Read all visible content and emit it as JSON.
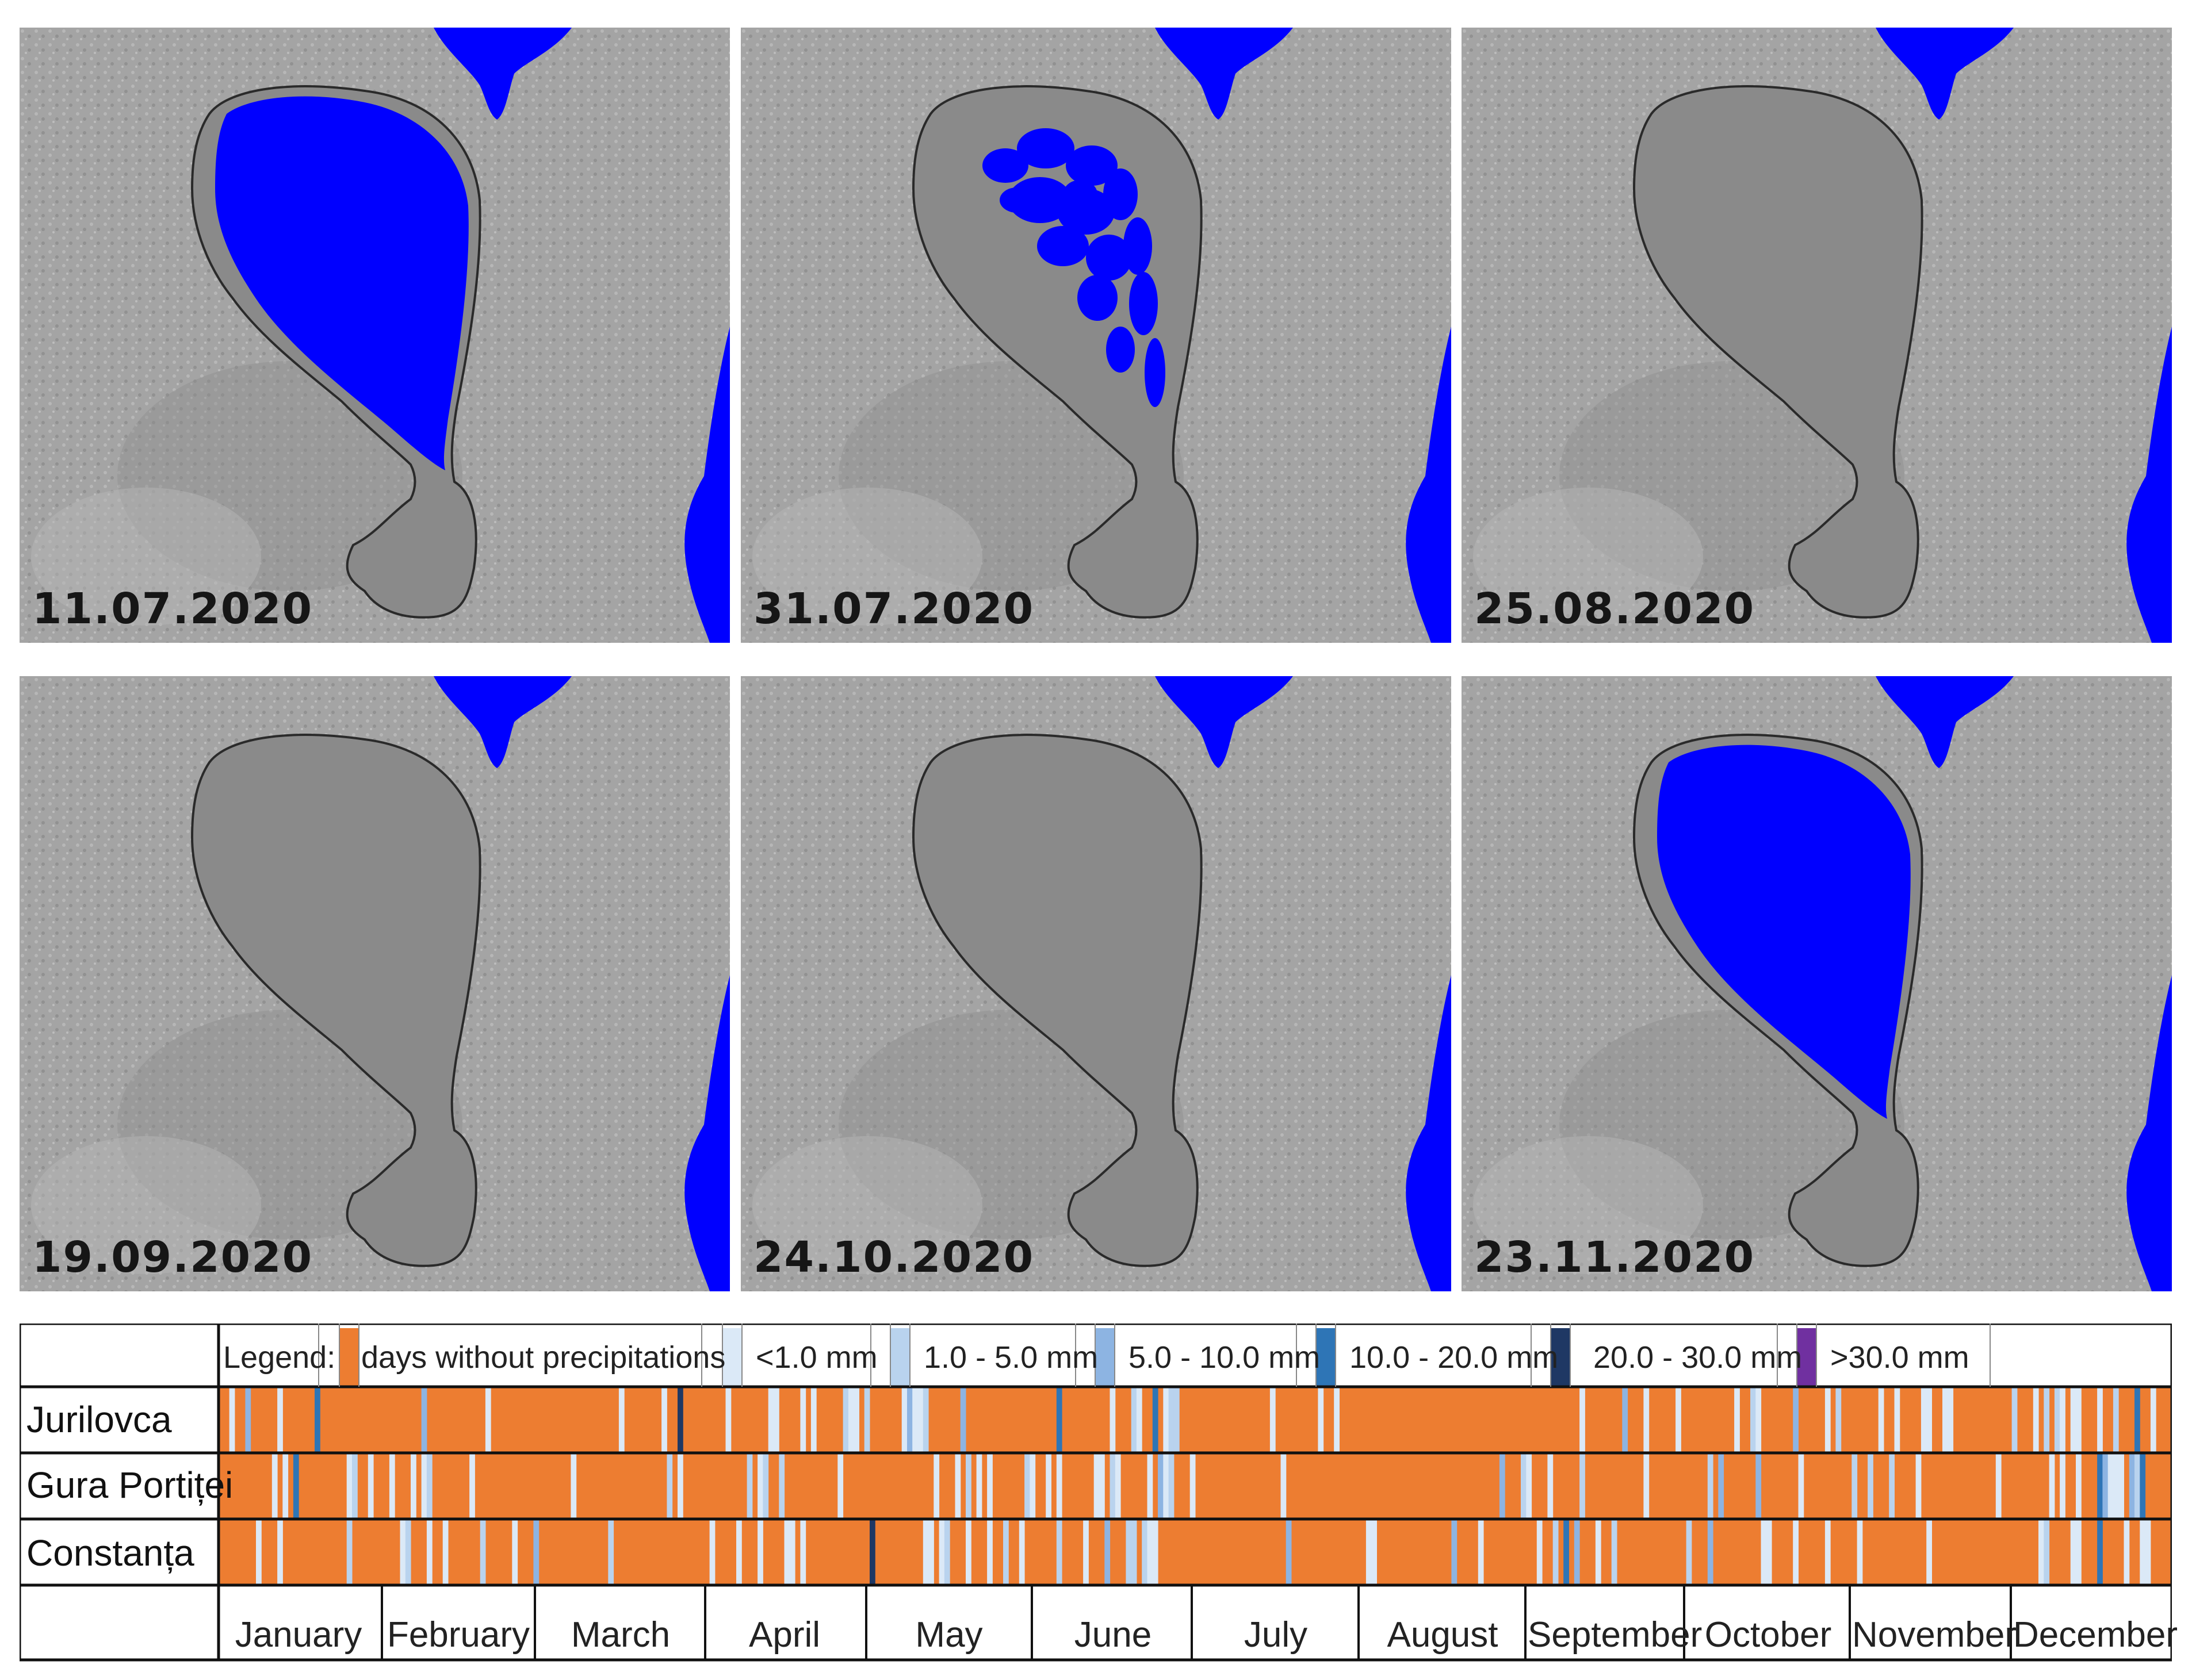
{
  "panels": [
    {
      "date": "11.07.2020",
      "water": "full-partial"
    },
    {
      "date": "31.07.2020",
      "water": "patches"
    },
    {
      "date": "25.08.2020",
      "water": "dry"
    },
    {
      "date": "19.09.2020",
      "water": "dry"
    },
    {
      "date": "24.10.2020",
      "water": "dry"
    },
    {
      "date": "23.11.2020",
      "water": "full"
    }
  ],
  "colors": {
    "water": "#0000ff",
    "lake_dry": "#8a8a8a",
    "terrain": "#a4a4a4",
    "dry_day": "#ed7d31",
    "p_lt1": "#dbe9f7",
    "p_1_5": "#b9d3ee",
    "p_5_10": "#8db4e2",
    "p_10_20": "#2e75b6",
    "p_20_30": "#1f3864",
    "p_gt30": "#7030a0"
  },
  "legend": {
    "title": "Legend:",
    "items": [
      {
        "label": "days without precipitations",
        "color": "#ed7d31"
      },
      {
        "label": "<1.0 mm",
        "color": "#dbe9f7"
      },
      {
        "label": "1.0 - 5.0 mm",
        "color": "#b9d3ee"
      },
      {
        "label": "5.0 - 10.0 mm",
        "color": "#8db4e2"
      },
      {
        "label": "10.0 - 20.0 mm",
        "color": "#2e75b6"
      },
      {
        "label": "20.0 - 30.0 mm",
        "color": "#1f3864"
      },
      {
        "label": ">30.0 mm",
        "color": "#7030a0"
      }
    ]
  },
  "stations": [
    "Jurilovca",
    "Gura Portiței",
    "Constanța"
  ],
  "months": [
    "January",
    "February",
    "March",
    "April",
    "May",
    "June",
    "July",
    "August",
    "September",
    "October",
    "November",
    "December"
  ]
}
